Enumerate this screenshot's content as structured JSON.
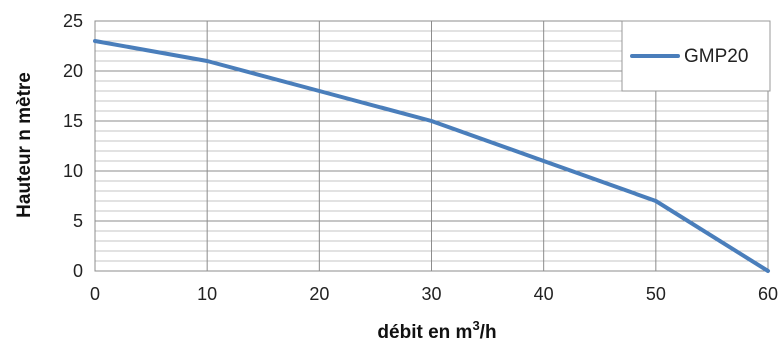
{
  "chart_data": {
    "type": "line",
    "title": "",
    "xlabel": "débit en m",
    "xlabel_sup": "3",
    "xlabel_suffix": "/h",
    "ylabel": "Hauteur n mètre",
    "xlim": [
      0,
      60
    ],
    "ylim": [
      0,
      25
    ],
    "xticks": [
      0,
      10,
      20,
      30,
      40,
      50,
      60
    ],
    "yticks": [
      0,
      5,
      10,
      15,
      20,
      25
    ],
    "x_grid_step": 10,
    "y_grid_step": 1,
    "grid": true,
    "legend_position": "top-right",
    "series": [
      {
        "name": "GMP20",
        "color": "#4a7ebb",
        "x": [
          0,
          10,
          20,
          30,
          40,
          50,
          60
        ],
        "y": [
          23,
          21,
          18,
          15,
          11,
          7,
          0
        ]
      }
    ]
  }
}
